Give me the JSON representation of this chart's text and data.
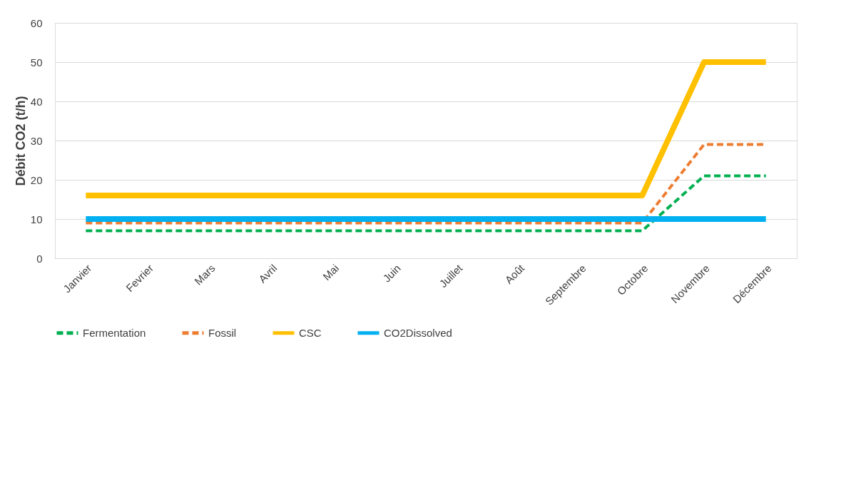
{
  "chart_data": {
    "type": "line",
    "ylabel": "Débit CO2 (t/h)",
    "categories": [
      "Janvier",
      "Fevrier",
      "Mars",
      "Avril",
      "Mai",
      "Juin",
      "Juillet",
      "Août",
      "Septembre",
      "Octobre",
      "Novembre",
      "Décembre"
    ],
    "series": [
      {
        "name": "Fermentation",
        "color": "#00b050",
        "line_style": "dashed",
        "values": [
          7,
          7,
          7,
          7,
          7,
          7,
          7,
          7,
          7,
          7,
          21,
          21
        ]
      },
      {
        "name": "Fossil",
        "color": "#ed7d31",
        "line_style": "dashed",
        "values": [
          9,
          9,
          9,
          9,
          9,
          9,
          9,
          9,
          9,
          9,
          29,
          29
        ]
      },
      {
        "name": "CSC",
        "color": "#ffc000",
        "line_style": "solid",
        "values": [
          16,
          16,
          16,
          16,
          16,
          16,
          16,
          16,
          16,
          16,
          50,
          50
        ]
      },
      {
        "name": "CO2Dissolved",
        "color": "#00b0f0",
        "line_style": "solid",
        "values": [
          10,
          10,
          10,
          10,
          10,
          10,
          10,
          10,
          10,
          10,
          10,
          10
        ]
      }
    ],
    "ylim": [
      0,
      60
    ],
    "yticks": [
      0,
      10,
      20,
      30,
      40,
      50,
      60
    ],
    "grid": "y",
    "legend": "bottom",
    "marker": "none"
  }
}
